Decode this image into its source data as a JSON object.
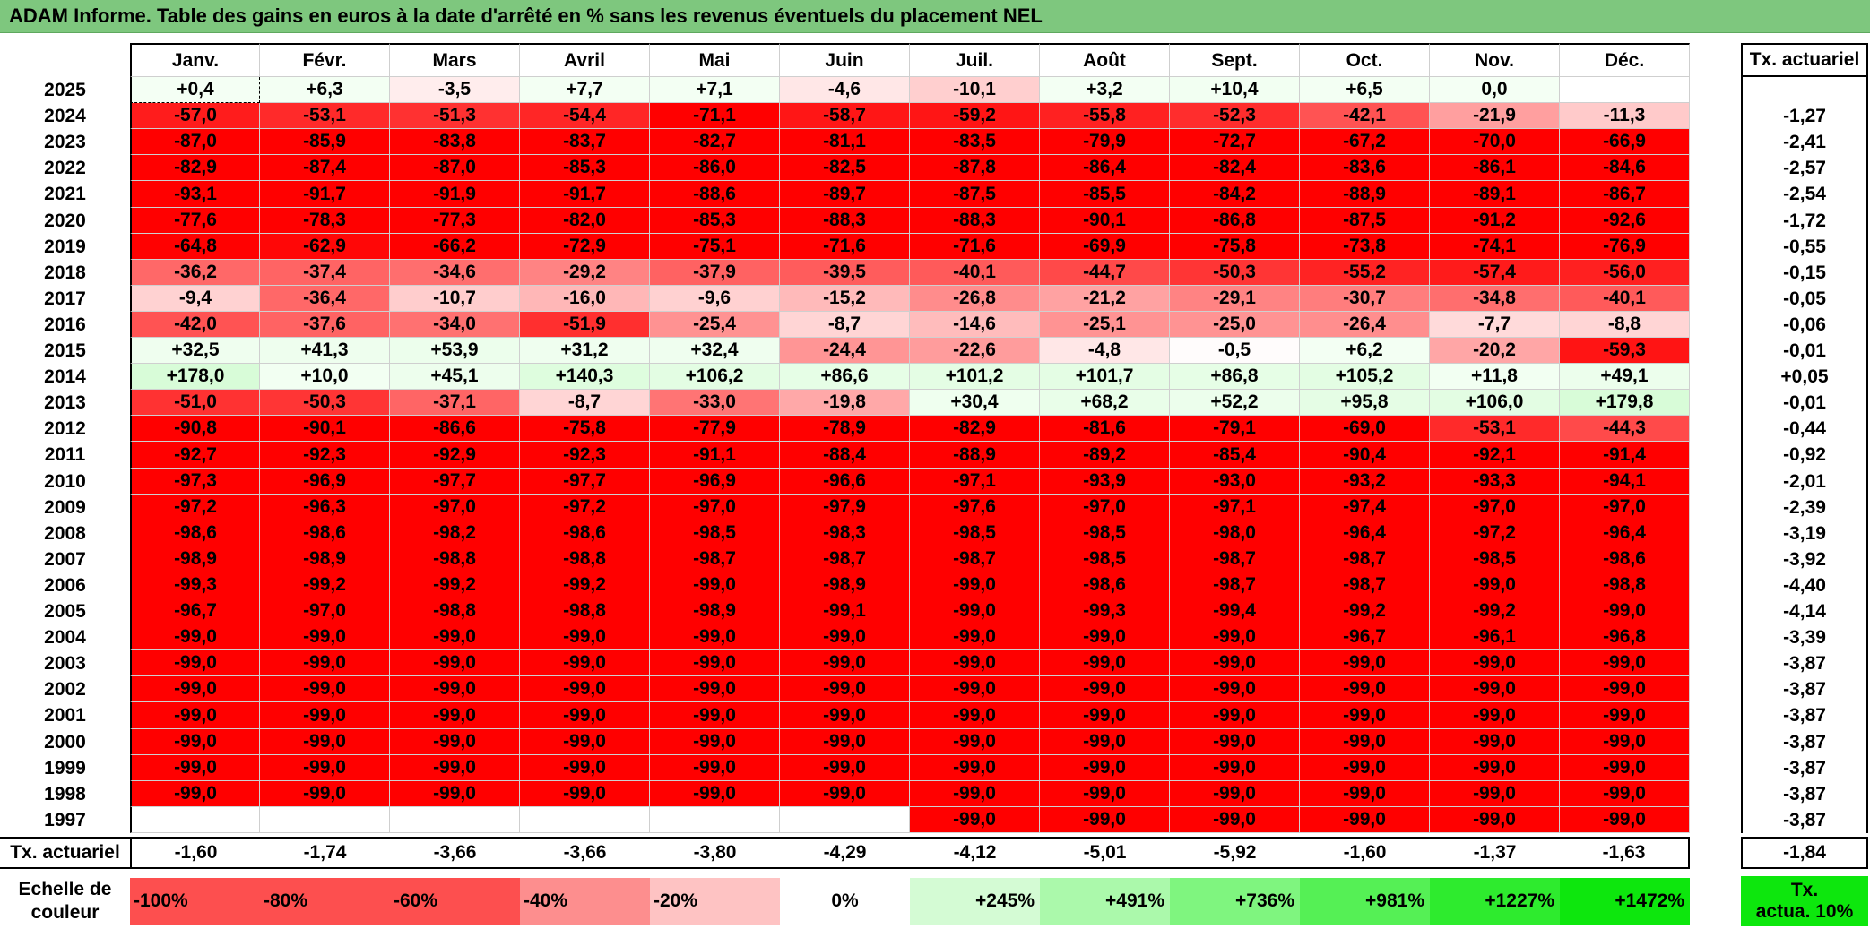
{
  "title": "ADAM Informe. Table des gains en euros à la date d'arrêté en % sans les revenus éventuels du placement NEL",
  "months": [
    "Janv.",
    "Févr.",
    "Mars",
    "Avril",
    "Mai",
    "Juin",
    "Juil.",
    "Août",
    "Sept.",
    "Oct.",
    "Nov.",
    "Déc."
  ],
  "rate_header": "Tx. actuariel",
  "rows": [
    {
      "year": "2025",
      "values": [
        "+0,4",
        "+6,3",
        "-3,5",
        "+7,7",
        "+7,1",
        "-4,6",
        "-10,1",
        "+3,2",
        "+10,4",
        "+6,5",
        "0,0",
        ""
      ],
      "rate": ""
    },
    {
      "year": "2024",
      "values": [
        "-57,0",
        "-53,1",
        "-51,3",
        "-54,4",
        "-71,1",
        "-58,7",
        "-59,2",
        "-55,8",
        "-52,3",
        "-42,1",
        "-21,9",
        "-11,3"
      ],
      "rate": "-1,27"
    },
    {
      "year": "2023",
      "values": [
        "-87,0",
        "-85,9",
        "-83,8",
        "-83,7",
        "-82,7",
        "-81,1",
        "-83,5",
        "-79,9",
        "-72,7",
        "-67,2",
        "-70,0",
        "-66,9"
      ],
      "rate": "-2,41"
    },
    {
      "year": "2022",
      "values": [
        "-82,9",
        "-87,4",
        "-87,0",
        "-85,3",
        "-86,0",
        "-82,5",
        "-87,8",
        "-86,4",
        "-82,4",
        "-83,6",
        "-86,1",
        "-84,6"
      ],
      "rate": "-2,57"
    },
    {
      "year": "2021",
      "values": [
        "-93,1",
        "-91,7",
        "-91,9",
        "-91,7",
        "-88,6",
        "-89,7",
        "-87,5",
        "-85,5",
        "-84,2",
        "-88,9",
        "-89,1",
        "-86,7"
      ],
      "rate": "-2,54"
    },
    {
      "year": "2020",
      "values": [
        "-77,6",
        "-78,3",
        "-77,3",
        "-82,0",
        "-85,3",
        "-88,3",
        "-88,3",
        "-90,1",
        "-86,8",
        "-87,5",
        "-91,2",
        "-92,6"
      ],
      "rate": "-1,72"
    },
    {
      "year": "2019",
      "values": [
        "-64,8",
        "-62,9",
        "-66,2",
        "-72,9",
        "-75,1",
        "-71,6",
        "-71,6",
        "-69,9",
        "-75,8",
        "-73,8",
        "-74,1",
        "-76,9"
      ],
      "rate": "-0,55"
    },
    {
      "year": "2018",
      "values": [
        "-36,2",
        "-37,4",
        "-34,6",
        "-29,2",
        "-37,9",
        "-39,5",
        "-40,1",
        "-44,7",
        "-50,3",
        "-55,2",
        "-57,4",
        "-56,0"
      ],
      "rate": "-0,15"
    },
    {
      "year": "2017",
      "values": [
        "-9,4",
        "-36,4",
        "-10,7",
        "-16,0",
        "-9,6",
        "-15,2",
        "-26,8",
        "-21,2",
        "-29,1",
        "-30,7",
        "-34,8",
        "-40,1"
      ],
      "rate": "-0,05"
    },
    {
      "year": "2016",
      "values": [
        "-42,0",
        "-37,6",
        "-34,0",
        "-51,9",
        "-25,4",
        "-8,7",
        "-14,6",
        "-25,1",
        "-25,0",
        "-26,4",
        "-7,7",
        "-8,8"
      ],
      "rate": "-0,06"
    },
    {
      "year": "2015",
      "values": [
        "+32,5",
        "+41,3",
        "+53,9",
        "+31,2",
        "+32,4",
        "-24,4",
        "-22,6",
        "-4,8",
        "-0,5",
        "+6,2",
        "-20,2",
        "-59,3"
      ],
      "rate": "-0,01"
    },
    {
      "year": "2014",
      "values": [
        "+178,0",
        "+10,0",
        "+45,1",
        "+140,3",
        "+106,2",
        "+86,6",
        "+101,2",
        "+101,7",
        "+86,8",
        "+105,2",
        "+11,8",
        "+49,1"
      ],
      "rate": "+0,05"
    },
    {
      "year": "2013",
      "values": [
        "-51,0",
        "-50,3",
        "-37,1",
        "-8,7",
        "-33,0",
        "-19,8",
        "+30,4",
        "+68,2",
        "+52,2",
        "+95,8",
        "+106,0",
        "+179,8"
      ],
      "rate": "-0,01"
    },
    {
      "year": "2012",
      "values": [
        "-90,8",
        "-90,1",
        "-86,6",
        "-75,8",
        "-77,9",
        "-78,9",
        "-82,9",
        "-81,6",
        "-79,1",
        "-69,0",
        "-53,1",
        "-44,3"
      ],
      "rate": "-0,44"
    },
    {
      "year": "2011",
      "values": [
        "-92,7",
        "-92,3",
        "-92,9",
        "-92,3",
        "-91,1",
        "-88,4",
        "-88,9",
        "-89,2",
        "-85,4",
        "-90,4",
        "-92,1",
        "-91,4"
      ],
      "rate": "-0,92"
    },
    {
      "year": "2010",
      "values": [
        "-97,3",
        "-96,9",
        "-97,7",
        "-97,7",
        "-96,9",
        "-96,6",
        "-97,1",
        "-93,9",
        "-93,0",
        "-93,2",
        "-93,3",
        "-94,1"
      ],
      "rate": "-2,01"
    },
    {
      "year": "2009",
      "values": [
        "-97,2",
        "-96,3",
        "-97,0",
        "-97,2",
        "-97,0",
        "-97,9",
        "-97,6",
        "-97,0",
        "-97,1",
        "-97,4",
        "-97,0",
        "-97,0"
      ],
      "rate": "-2,39"
    },
    {
      "year": "2008",
      "values": [
        "-98,6",
        "-98,6",
        "-98,2",
        "-98,6",
        "-98,5",
        "-98,3",
        "-98,5",
        "-98,5",
        "-98,0",
        "-96,4",
        "-97,2",
        "-96,4"
      ],
      "rate": "-3,19"
    },
    {
      "year": "2007",
      "values": [
        "-98,9",
        "-98,9",
        "-98,8",
        "-98,8",
        "-98,7",
        "-98,7",
        "-98,7",
        "-98,5",
        "-98,7",
        "-98,7",
        "-98,5",
        "-98,6"
      ],
      "rate": "-3,92"
    },
    {
      "year": "2006",
      "values": [
        "-99,3",
        "-99,2",
        "-99,2",
        "-99,2",
        "-99,0",
        "-98,9",
        "-99,0",
        "-98,6",
        "-98,7",
        "-98,7",
        "-99,0",
        "-98,8"
      ],
      "rate": "-4,40"
    },
    {
      "year": "2005",
      "values": [
        "-96,7",
        "-97,0",
        "-98,8",
        "-98,8",
        "-98,9",
        "-99,1",
        "-99,0",
        "-99,3",
        "-99,4",
        "-99,2",
        "-99,2",
        "-99,0"
      ],
      "rate": "-4,14"
    },
    {
      "year": "2004",
      "values": [
        "-99,0",
        "-99,0",
        "-99,0",
        "-99,0",
        "-99,0",
        "-99,0",
        "-99,0",
        "-99,0",
        "-99,0",
        "-96,7",
        "-96,1",
        "-96,8"
      ],
      "rate": "-3,39"
    },
    {
      "year": "2003",
      "values": [
        "-99,0",
        "-99,0",
        "-99,0",
        "-99,0",
        "-99,0",
        "-99,0",
        "-99,0",
        "-99,0",
        "-99,0",
        "-99,0",
        "-99,0",
        "-99,0"
      ],
      "rate": "-3,87"
    },
    {
      "year": "2002",
      "values": [
        "-99,0",
        "-99,0",
        "-99,0",
        "-99,0",
        "-99,0",
        "-99,0",
        "-99,0",
        "-99,0",
        "-99,0",
        "-99,0",
        "-99,0",
        "-99,0"
      ],
      "rate": "-3,87"
    },
    {
      "year": "2001",
      "values": [
        "-99,0",
        "-99,0",
        "-99,0",
        "-99,0",
        "-99,0",
        "-99,0",
        "-99,0",
        "-99,0",
        "-99,0",
        "-99,0",
        "-99,0",
        "-99,0"
      ],
      "rate": "-3,87"
    },
    {
      "year": "2000",
      "values": [
        "-99,0",
        "-99,0",
        "-99,0",
        "-99,0",
        "-99,0",
        "-99,0",
        "-99,0",
        "-99,0",
        "-99,0",
        "-99,0",
        "-99,0",
        "-99,0"
      ],
      "rate": "-3,87"
    },
    {
      "year": "1999",
      "values": [
        "-99,0",
        "-99,0",
        "-99,0",
        "-99,0",
        "-99,0",
        "-99,0",
        "-99,0",
        "-99,0",
        "-99,0",
        "-99,0",
        "-99,0",
        "-99,0"
      ],
      "rate": "-3,87"
    },
    {
      "year": "1998",
      "values": [
        "-99,0",
        "-99,0",
        "-99,0",
        "-99,0",
        "-99,0",
        "-99,0",
        "-99,0",
        "-99,0",
        "-99,0",
        "-99,0",
        "-99,0",
        "-99,0"
      ],
      "rate": "-3,87"
    },
    {
      "year": "1997",
      "values": [
        "",
        "",
        "",
        "",
        "",
        "",
        "-99,0",
        "-99,0",
        "-99,0",
        "-99,0",
        "-99,0",
        "-99,0"
      ],
      "rate": "-3,87"
    }
  ],
  "footer": {
    "label": "Tx. actuariel",
    "values": [
      "-1,60",
      "-1,74",
      "-3,66",
      "-3,66",
      "-3,80",
      "-4,29",
      "-4,12",
      "-5,01",
      "-5,92",
      "-1,60",
      "-1,37",
      "-1,63"
    ],
    "overall": "-1,84"
  },
  "scale": {
    "label_line1": "Echelle de",
    "label_line2": "couleur",
    "items": [
      {
        "text": "-100%",
        "color": "#fd4f4f"
      },
      {
        "text": "-80%",
        "color": "#fd4f4f"
      },
      {
        "text": "-60%",
        "color": "#fd4f4f"
      },
      {
        "text": "-40%",
        "color": "#fd8e8e"
      },
      {
        "text": "-20%",
        "color": "#fec3c3"
      },
      {
        "text": "0%",
        "color": "#ffffff"
      },
      {
        "text": "+245%",
        "color": "#d4fbd4"
      },
      {
        "text": "+491%",
        "color": "#abf9ab"
      },
      {
        "text": "+736%",
        "color": "#7ff57f"
      },
      {
        "text": "+981%",
        "color": "#55f055"
      },
      {
        "text": "+1227%",
        "color": "#2eeb2e"
      },
      {
        "text": "+1472%",
        "color": "#0de70d"
      }
    ],
    "badge_line1": "Tx.",
    "badge_line2": "actua. 10%",
    "badge_color": "#0de70d"
  },
  "colors": {
    "title_bar": "#7ec77e",
    "red_full": "#ff0000",
    "green_full": "#0de70d"
  }
}
